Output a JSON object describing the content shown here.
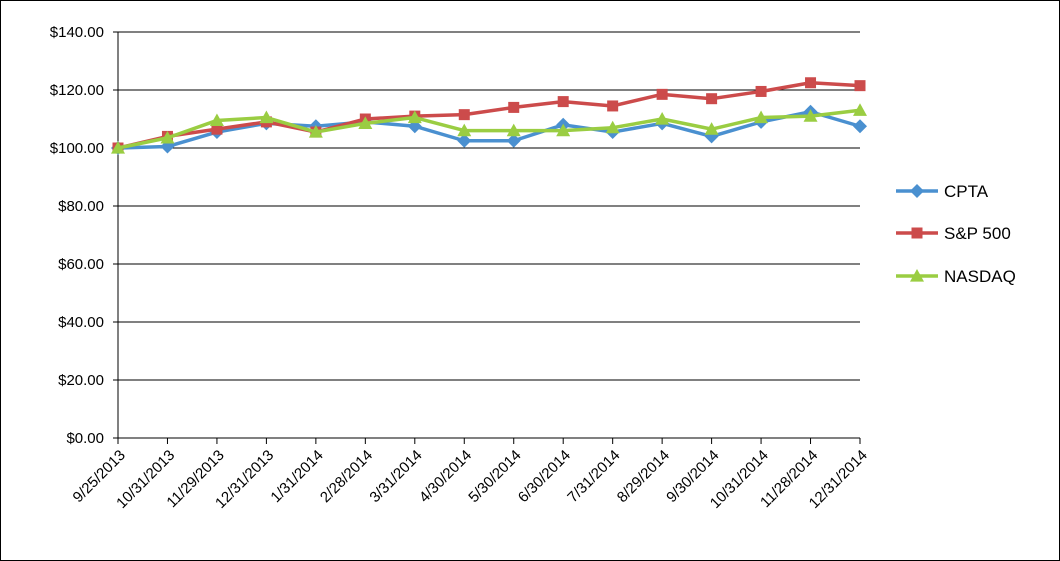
{
  "chart_data": {
    "type": "line",
    "title": "",
    "xlabel": "",
    "ylabel": "",
    "categories": [
      "9/25/2013",
      "10/31/2013",
      "11/29/2013",
      "12/31/2013",
      "1/31/2014",
      "2/28/2014",
      "3/31/2014",
      "4/30/2014",
      "5/30/2014",
      "6/30/2014",
      "7/31/2014",
      "8/29/2014",
      "9/30/2014",
      "10/31/2014",
      "11/28/2014",
      "12/31/2014"
    ],
    "ylim": [
      0,
      140
    ],
    "yticks": [
      0,
      20,
      40,
      60,
      80,
      100,
      120,
      140
    ],
    "ytick_labels": [
      "$0.00",
      "$20.00",
      "$40.00",
      "$60.00",
      "$80.00",
      "$100.00",
      "$120.00",
      "$140.00"
    ],
    "grid": "horizontal",
    "legend_position": "right",
    "series": [
      {
        "name": "CPTA",
        "color": "#4A90D0",
        "marker": "diamond",
        "values": [
          100,
          100.5,
          105.5,
          108.5,
          107.5,
          109,
          107.5,
          102.5,
          102.5,
          108,
          105.5,
          108.5,
          104,
          109,
          112.5,
          107.5
        ]
      },
      {
        "name": "S&P 500",
        "color": "#CC4B4B",
        "marker": "square",
        "values": [
          100,
          104,
          106.5,
          109,
          105.5,
          110,
          111,
          111.5,
          114,
          116,
          114.5,
          118.5,
          117,
          119.5,
          122.5,
          121.5
        ]
      },
      {
        "name": "NASDAQ",
        "color": "#9ACD42",
        "marker": "triangle",
        "values": [
          100,
          103.5,
          109.5,
          110.5,
          105.5,
          108.5,
          110.5,
          106,
          106,
          106,
          107,
          110,
          106.5,
          110.5,
          111,
          113
        ]
      }
    ]
  }
}
